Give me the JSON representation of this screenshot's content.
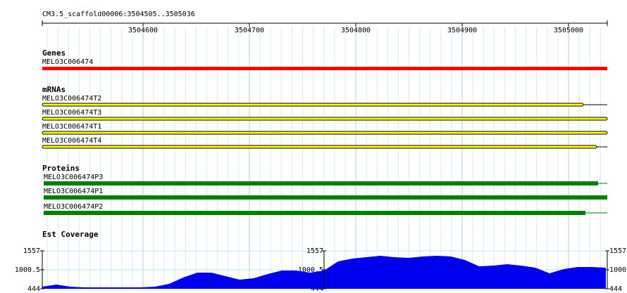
{
  "ruler": {
    "title": "CM3.5_scaffold00006:3504505..3505036",
    "ticks": [
      3504600,
      3504700,
      3504800,
      3504900,
      3505000
    ]
  },
  "tracks": {
    "genes": {
      "title": "Genes",
      "items": [
        "MELO3C006474"
      ]
    },
    "mrnas": {
      "title": "mRNAs",
      "items": [
        "MELO3C006474T2",
        "MELO3C006474T3",
        "MELO3C006474T1",
        "MELO3C006474T4"
      ]
    },
    "proteins": {
      "title": "Proteins",
      "items": [
        "MELO3C006474P3",
        "MELO3C006474P1",
        "MELO3C006474P2"
      ]
    },
    "coverage": {
      "title": "Est Coverage",
      "ylim": [
        444,
        1557
      ],
      "yticks": [
        444,
        1000.5,
        1557
      ],
      "values": [
        506,
        568,
        506,
        486,
        486,
        486,
        486,
        486,
        506,
        589,
        774,
        918,
        918,
        815,
        712,
        754,
        877,
        980,
        980,
        918,
        980,
        1248,
        1330,
        1372,
        1413,
        1372,
        1351,
        1392,
        1413,
        1392,
        1289,
        1104,
        1124,
        1166,
        1124,
        1063,
        898,
        1021,
        1083,
        1083,
        1063
      ]
    }
  }
}
